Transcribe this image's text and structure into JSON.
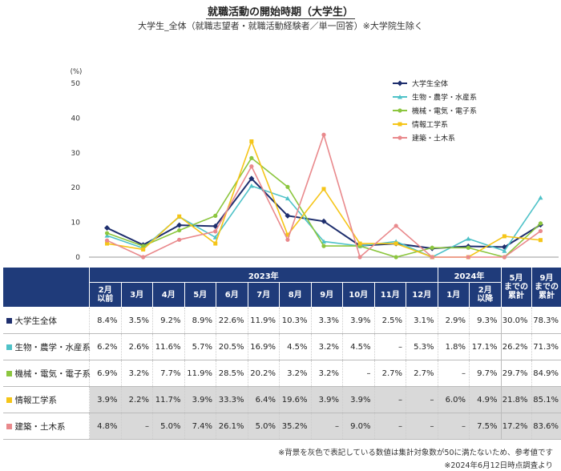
{
  "title": "就職活動の開始時期（大学生）",
  "subtitle": "大学生_全体（就職志望者・就職活動経験者／単一回答）※大学院生除く",
  "chart_data": {
    "type": "line",
    "ylabel": "(%)",
    "ylim": [
      0,
      50
    ],
    "yticks": [
      0,
      10,
      20,
      30,
      40,
      50
    ],
    "legend_position": "top-right",
    "categories": [
      "2月以前",
      "3月",
      "4月",
      "5月",
      "6月",
      "7月",
      "8月",
      "9月",
      "10月",
      "11月",
      "12月",
      "1月",
      "2月以降"
    ],
    "series": [
      {
        "name": "大学生全体",
        "color": "#1f2f6e",
        "marker": "diamond",
        "values": [
          8.4,
          3.5,
          9.2,
          8.9,
          22.6,
          11.9,
          10.3,
          3.3,
          3.9,
          2.5,
          3.1,
          2.9,
          9.3
        ]
      },
      {
        "name": "生物・農学・水産系",
        "color": "#4fc2c8",
        "marker": "triangle",
        "values": [
          6.2,
          2.6,
          11.6,
          5.7,
          20.5,
          16.9,
          4.5,
          3.2,
          4.5,
          0,
          5.3,
          1.8,
          17.1
        ]
      },
      {
        "name": "機械・電気・電子系",
        "color": "#8cc63f",
        "marker": "circle",
        "values": [
          6.9,
          3.2,
          7.7,
          11.9,
          28.5,
          20.2,
          3.2,
          3.2,
          0,
          2.7,
          2.7,
          0,
          9.7
        ]
      },
      {
        "name": "情報工学系",
        "color": "#f5c518",
        "marker": "square",
        "values": [
          3.9,
          2.2,
          11.7,
          3.9,
          33.3,
          6.4,
          19.6,
          3.9,
          3.9,
          0,
          0,
          6.0,
          4.9
        ]
      },
      {
        "name": "建築・土木系",
        "color": "#e9898c",
        "marker": "circle",
        "values": [
          4.8,
          0,
          5.0,
          7.4,
          26.1,
          5.0,
          35.2,
          0,
          9.0,
          0,
          0,
          0,
          7.5
        ]
      }
    ]
  },
  "table": {
    "year_2023": "2023年",
    "year_2024": "2024年",
    "months": [
      "2月\n以前",
      "3月",
      "4月",
      "5月",
      "6月",
      "7月",
      "8月",
      "9月",
      "10月",
      "11月",
      "12月",
      "1月",
      "2月\n以降"
    ],
    "cum_may": "5月\nまでの\n累計",
    "cum_sep": "9月\nまでの\n累計",
    "rows": [
      {
        "label": "大学生全体",
        "color": "#1f2f6e",
        "gray": false,
        "cells": [
          "8.4%",
          "3.5%",
          "9.2%",
          "8.9%",
          "22.6%",
          "11.9%",
          "10.3%",
          "3.3%",
          "3.9%",
          "2.5%",
          "3.1%",
          "2.9%",
          "9.3%",
          "30.0%",
          "78.3%"
        ]
      },
      {
        "label": "生物・農学・水産系",
        "color": "#4fc2c8",
        "gray": false,
        "cells": [
          "6.2%",
          "2.6%",
          "11.6%",
          "5.7%",
          "20.5%",
          "16.9%",
          "4.5%",
          "3.2%",
          "4.5%",
          "–",
          "5.3%",
          "1.8%",
          "17.1%",
          "26.2%",
          "71.3%"
        ]
      },
      {
        "label": "機械・電気・電子系",
        "color": "#8cc63f",
        "gray": false,
        "cells": [
          "6.9%",
          "3.2%",
          "7.7%",
          "11.9%",
          "28.5%",
          "20.2%",
          "3.2%",
          "3.2%",
          "–",
          "2.7%",
          "2.7%",
          "–",
          "9.7%",
          "29.7%",
          "84.9%"
        ]
      },
      {
        "label": "情報工学系",
        "color": "#f5c518",
        "gray": true,
        "cells": [
          "3.9%",
          "2.2%",
          "11.7%",
          "3.9%",
          "33.3%",
          "6.4%",
          "19.6%",
          "3.9%",
          "3.9%",
          "–",
          "–",
          "6.0%",
          "4.9%",
          "21.8%",
          "85.1%"
        ]
      },
      {
        "label": "建築・土木系",
        "color": "#e9898c",
        "gray": true,
        "cells": [
          "4.8%",
          "–",
          "5.0%",
          "7.4%",
          "26.1%",
          "5.0%",
          "35.2%",
          "–",
          "9.0%",
          "–",
          "–",
          "–",
          "7.5%",
          "17.2%",
          "83.6%"
        ]
      }
    ]
  },
  "notes": {
    "note1": "※背景を灰色で表記している数値は集計対象数が50に満たないため、参考値です",
    "note2": "※2024年6月12日時点調査より"
  }
}
